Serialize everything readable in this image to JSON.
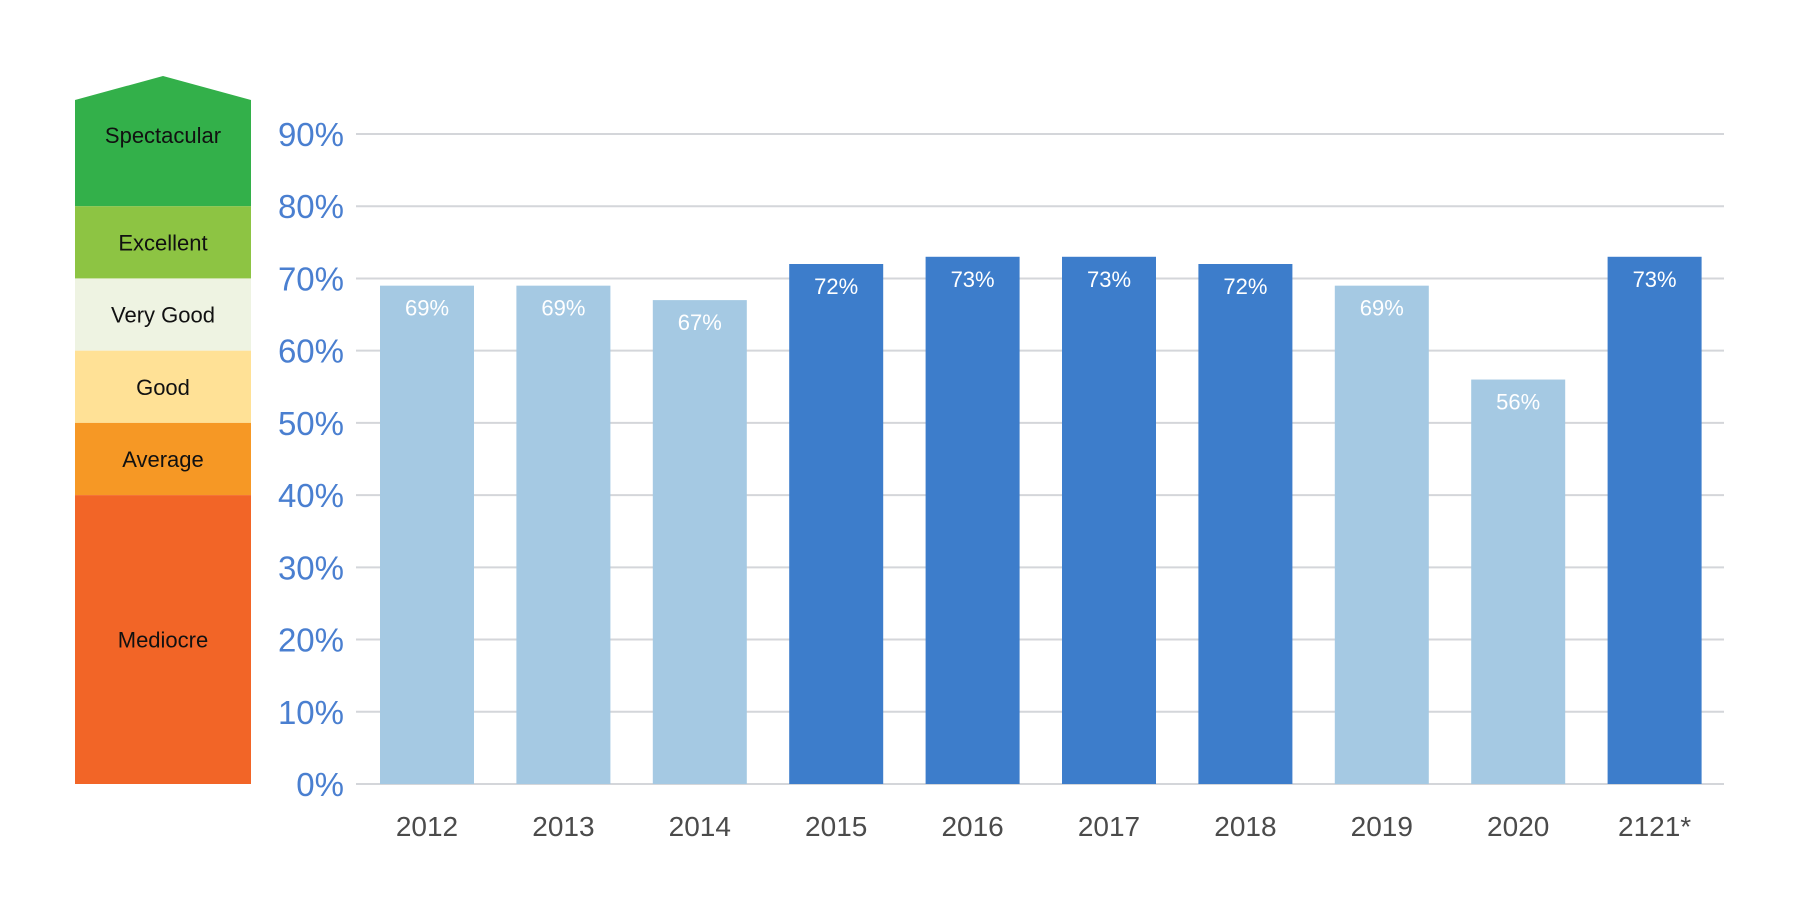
{
  "rating_scale": {
    "levels": [
      {
        "label": "Spectacular",
        "color": "#33b04a",
        "min": 80,
        "max": 90
      },
      {
        "label": "Excellent",
        "color": "#8dc443",
        "min": 70,
        "max": 80
      },
      {
        "label": "Very Good",
        "color": "#eef3e2",
        "min": 60,
        "max": 70
      },
      {
        "label": "Good",
        "color": "#ffe196",
        "min": 50,
        "max": 60
      },
      {
        "label": "Average",
        "color": "#f69825",
        "min": 40,
        "max": 50
      },
      {
        "label": "Mediocre",
        "color": "#f26527",
        "min": 0,
        "max": 40
      }
    ]
  },
  "chart_data": {
    "type": "bar",
    "categories": [
      "2012",
      "2013",
      "2014",
      "2015",
      "2016",
      "2017",
      "2018",
      "2019",
      "2020",
      "2121*"
    ],
    "values": [
      69,
      69,
      67,
      72,
      73,
      73,
      72,
      69,
      56,
      73
    ],
    "data_labels": [
      "69%",
      "69%",
      "67%",
      "72%",
      "73%",
      "73%",
      "72%",
      "69%",
      "56%",
      "73%"
    ],
    "y_ticks": [
      "0%",
      "10%",
      "20%",
      "30%",
      "40%",
      "50%",
      "60%",
      "70%",
      "80%",
      "90%"
    ],
    "ylim": [
      0,
      90
    ],
    "grid": true,
    "colors": {
      "below_70": "#a5c9e3",
      "at_or_above_70": "#3d7dcb",
      "tick_label": "#4a7fd0",
      "category_label": "#4b4b4b",
      "grid": "#d4d6da"
    }
  }
}
